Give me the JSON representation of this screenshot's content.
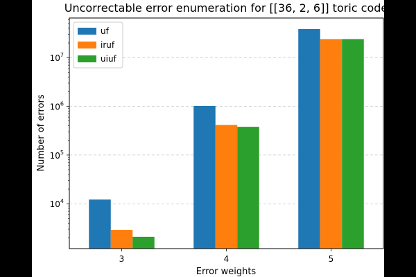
{
  "chart_data": {
    "type": "bar",
    "title": "Uncorrectable error enumeration for [[36, 2, 6]] toric code",
    "xlabel": "Error weights",
    "ylabel": "Number of errors",
    "yscale": "log",
    "ylim": [
      1200,
      65000000
    ],
    "categories": [
      "3",
      "4",
      "5"
    ],
    "series": [
      {
        "name": "uf",
        "color": "#1f77b4",
        "values": [
          12200,
          1020000,
          38500000
        ]
      },
      {
        "name": "iruf",
        "color": "#ff7f0e",
        "values": [
          2900,
          415000,
          24000000
        ]
      },
      {
        "name": "uiuf",
        "color": "#2ca02c",
        "values": [
          2100,
          380000,
          24000000
        ]
      }
    ],
    "yticks": [
      {
        "value": 10000,
        "base": "10",
        "exp": "4"
      },
      {
        "value": 100000,
        "base": "10",
        "exp": "5"
      },
      {
        "value": 1000000,
        "base": "10",
        "exp": "6"
      },
      {
        "value": 10000000,
        "base": "10",
        "exp": "7"
      }
    ],
    "grid": {
      "y": true,
      "x": false,
      "style": "dashed"
    },
    "legend": {
      "position": "top-left"
    }
  }
}
